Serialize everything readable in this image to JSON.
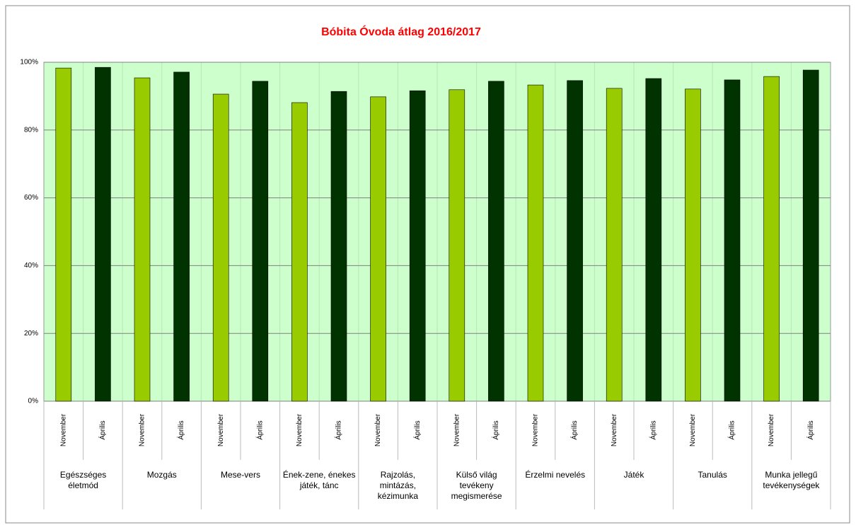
{
  "chart_data": {
    "type": "bar",
    "title": "Bóbita Óvoda átlag 2016/2017",
    "categories": [
      "Egészséges életmód",
      "Mozgás",
      "Mese-vers",
      "Ének-zene, énekes játék, tánc",
      "Rajzolás, mintázás, kézimunka",
      "Külső világ tevékeny megismerése",
      "Érzelmi nevelés",
      "Játék",
      "Tanulás",
      "Munka jellegű tevékenységek"
    ],
    "series": [
      {
        "name": "November",
        "color": "#99cc00",
        "values": [
          98.3,
          95.4,
          90.6,
          88.1,
          89.8,
          91.9,
          93.3,
          92.3,
          92.1,
          95.8
        ]
      },
      {
        "name": "Április",
        "color": "#003300",
        "values": [
          98.5,
          97.1,
          94.4,
          91.4,
          91.6,
          94.4,
          94.6,
          95.2,
          94.8,
          97.7
        ]
      }
    ],
    "ylim": [
      0,
      100
    ],
    "yticks": [
      {
        "value": 0,
        "label": "0%"
      },
      {
        "value": 20,
        "label": "20%"
      },
      {
        "value": 40,
        "label": "40%"
      },
      {
        "value": 60,
        "label": "60%"
      },
      {
        "value": 80,
        "label": "80%"
      },
      {
        "value": 100,
        "label": "100%"
      }
    ],
    "grid": true
  }
}
